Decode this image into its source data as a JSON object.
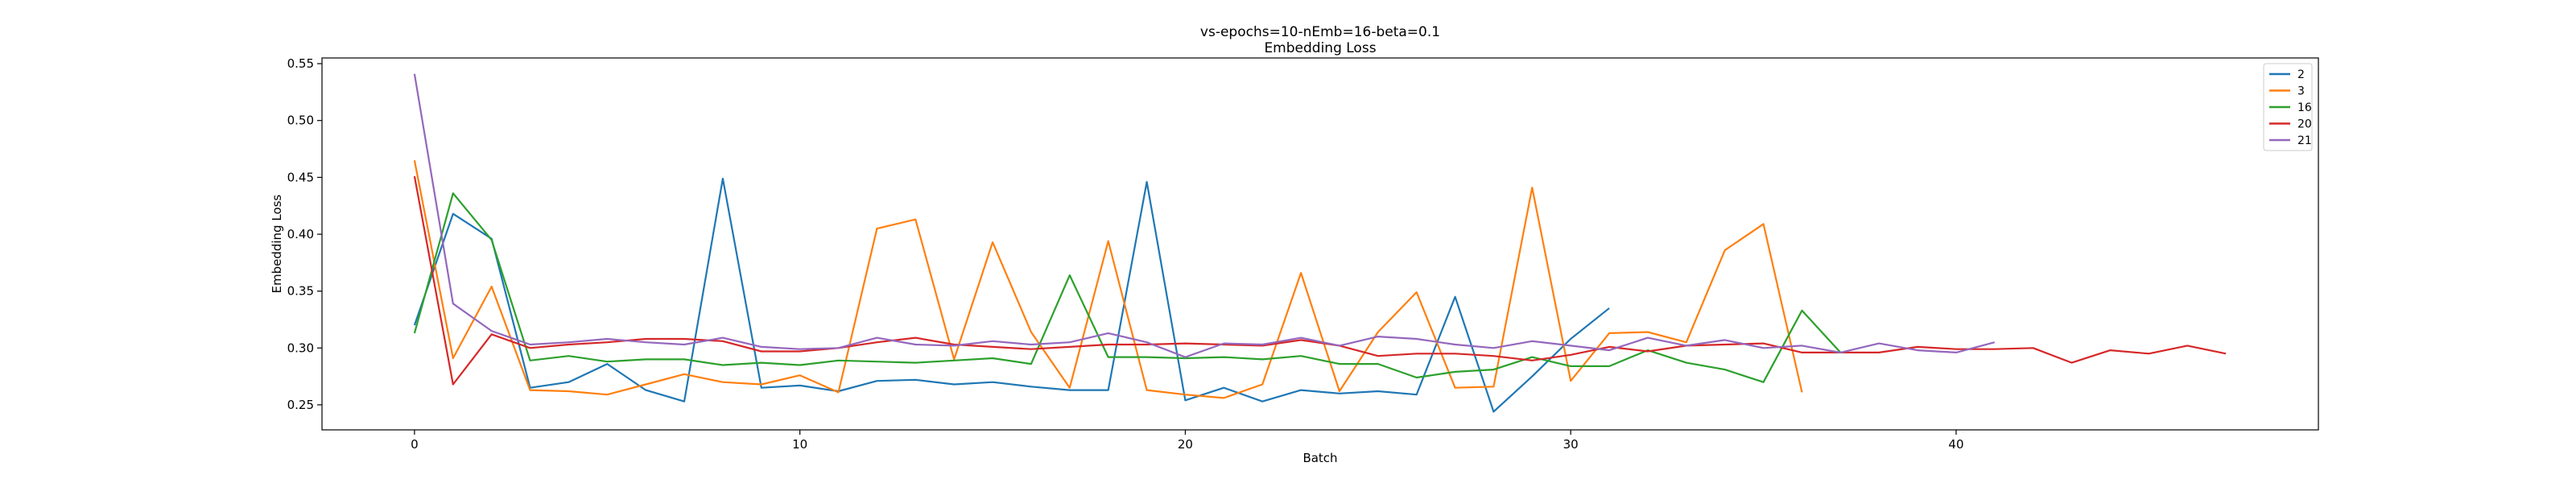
{
  "chart_data": {
    "type": "line",
    "title": "vs-epochs=10-nEmb=16-beta=0.1",
    "subtitle": "Embedding Loss",
    "xlabel": "Batch",
    "ylabel": "Embedding Loss",
    "xlim": [
      -2.4,
      49.4
    ],
    "ylim": [
      0.228,
      0.555
    ],
    "xticks": [
      0,
      10,
      20,
      30,
      40
    ],
    "yticks": [
      0.25,
      0.3,
      0.35,
      0.4,
      0.45,
      0.5,
      0.55
    ],
    "xtick_labels": [
      "0",
      "10",
      "20",
      "30",
      "40"
    ],
    "ytick_labels": [
      "0.25",
      "0.30",
      "0.35",
      "0.40",
      "0.45",
      "0.50",
      "0.55"
    ],
    "grid": false,
    "legend_position": "top-right",
    "series": [
      {
        "name": "2",
        "color": "#1f77b4",
        "values": [
          0.32,
          0.418,
          0.396,
          0.265,
          0.27,
          0.286,
          0.263,
          0.253,
          0.449,
          0.265,
          0.267,
          0.262,
          0.271,
          0.272,
          0.268,
          0.27,
          0.266,
          0.263,
          0.263,
          0.446,
          0.254,
          0.265,
          0.253,
          0.263,
          0.26,
          0.262,
          0.259,
          0.345,
          0.244,
          0.275,
          0.308,
          0.335
        ]
      },
      {
        "name": "3",
        "color": "#ff7f0e",
        "values": [
          0.465,
          0.291,
          0.354,
          0.263,
          0.262,
          0.259,
          0.268,
          0.277,
          0.27,
          0.268,
          0.276,
          0.261,
          0.405,
          0.413,
          0.29,
          0.393,
          0.314,
          0.265,
          0.394,
          0.263,
          0.259,
          0.256,
          0.268,
          0.366,
          0.262,
          0.314,
          0.349,
          0.265,
          0.266,
          0.441,
          0.271,
          0.313,
          0.314,
          0.305,
          0.386,
          0.409,
          0.261
        ]
      },
      {
        "name": "16",
        "color": "#2ca02c",
        "values": [
          0.313,
          0.436,
          0.395,
          0.289,
          0.293,
          0.288,
          0.29,
          0.29,
          0.285,
          0.287,
          0.285,
          0.289,
          0.288,
          0.287,
          0.289,
          0.291,
          0.286,
          0.364,
          0.292,
          0.292,
          0.291,
          0.292,
          0.29,
          0.293,
          0.286,
          0.286,
          0.274,
          0.279,
          0.281,
          0.292,
          0.284,
          0.284,
          0.298,
          0.287,
          0.281,
          0.27,
          0.333,
          0.296
        ]
      },
      {
        "name": "20",
        "color": "#d62728",
        "values": [
          0.451,
          0.268,
          0.312,
          0.3,
          0.303,
          0.305,
          0.308,
          0.308,
          0.306,
          0.297,
          0.297,
          0.3,
          0.305,
          0.309,
          0.303,
          0.301,
          0.299,
          0.301,
          0.303,
          0.303,
          0.304,
          0.303,
          0.302,
          0.307,
          0.302,
          0.293,
          0.295,
          0.295,
          0.293,
          0.289,
          0.294,
          0.301,
          0.297,
          0.302,
          0.303,
          0.304,
          0.296,
          0.296,
          0.296,
          0.301,
          0.299,
          0.299,
          0.3,
          0.287,
          0.298,
          0.295,
          0.302,
          0.295
        ]
      },
      {
        "name": "21",
        "color": "#9467bd",
        "values": [
          0.541,
          0.339,
          0.315,
          0.303,
          0.305,
          0.308,
          0.305,
          0.303,
          0.309,
          0.301,
          0.299,
          0.3,
          0.309,
          0.303,
          0.302,
          0.306,
          0.303,
          0.305,
          0.313,
          0.305,
          0.292,
          0.304,
          0.303,
          0.309,
          0.302,
          0.31,
          0.308,
          0.303,
          0.3,
          0.306,
          0.302,
          0.298,
          0.309,
          0.302,
          0.307,
          0.3,
          0.302,
          0.296,
          0.304,
          0.298,
          0.296,
          0.305
        ]
      }
    ]
  }
}
